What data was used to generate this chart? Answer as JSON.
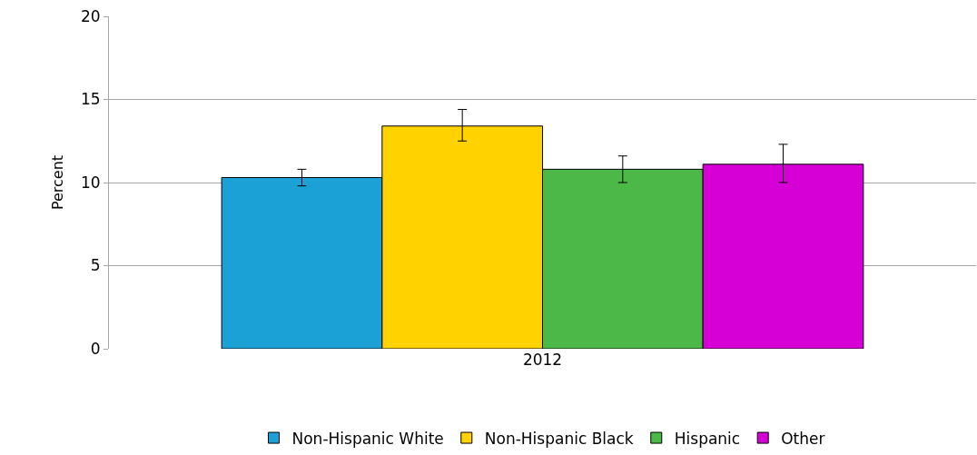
{
  "chart_data": {
    "type": "bar",
    "ylabel": "Percent",
    "categories": [
      "2012"
    ],
    "series": [
      {
        "name": "Non-Hispanic White",
        "color": "#1ba1d6",
        "values": [
          10.3
        ],
        "errors": [
          [
            9.8,
            10.8
          ]
        ]
      },
      {
        "name": "Non-Hispanic Black",
        "color": "#ffd200",
        "values": [
          13.4
        ],
        "errors": [
          [
            12.5,
            14.4
          ]
        ]
      },
      {
        "name": "Hispanic",
        "color": "#4cb848",
        "values": [
          10.8
        ],
        "errors": [
          [
            10.0,
            11.6
          ]
        ]
      },
      {
        "name": "Other",
        "color": "#d600d6",
        "values": [
          11.1
        ],
        "errors": [
          [
            10.0,
            12.3
          ]
        ]
      }
    ],
    "ylim": [
      0,
      20
    ],
    "yticks": [
      0,
      5,
      10,
      15,
      20
    ],
    "grid": "y",
    "legend": "bottom"
  }
}
